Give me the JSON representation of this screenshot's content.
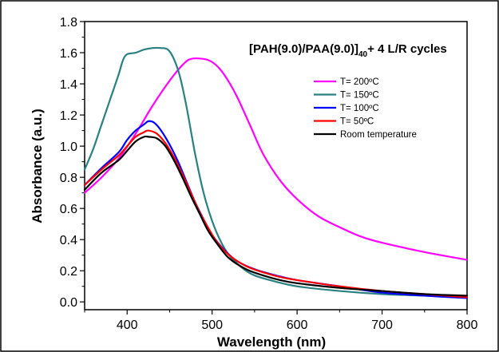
{
  "chart_data": {
    "type": "line",
    "title_main": "[PAH(9.0)/PAA(9.0)]",
    "title_sub": "40",
    "title_rest": "+ 4 L/R cycles",
    "xlabel": "Wavelength (nm)",
    "ylabel": "Absorbance (a.u.)",
    "xlim": [
      350,
      800
    ],
    "ylim": [
      -0.05,
      1.8
    ],
    "xticks": [
      400,
      500,
      600,
      700,
      800
    ],
    "yticks": [
      0.0,
      0.2,
      0.4,
      0.6,
      0.8,
      1.0,
      1.2,
      1.4,
      1.6,
      1.8
    ],
    "xtick_labels": [
      "400",
      "500",
      "600",
      "700",
      "800"
    ],
    "ytick_labels": [
      "0.0",
      "0.2",
      "0.4",
      "0.6",
      "0.8",
      "1.0",
      "1.2",
      "1.4",
      "1.6",
      "1.8"
    ],
    "grid": false,
    "legend_position": "top-right",
    "series": [
      {
        "name": "T= 200ºC",
        "color": "#ff00ff",
        "points": [
          [
            350,
            0.7
          ],
          [
            370,
            0.8
          ],
          [
            390,
            0.92
          ],
          [
            410,
            1.08
          ],
          [
            430,
            1.26
          ],
          [
            450,
            1.42
          ],
          [
            465,
            1.52
          ],
          [
            475,
            1.56
          ],
          [
            490,
            1.56
          ],
          [
            500,
            1.54
          ],
          [
            510,
            1.49
          ],
          [
            520,
            1.41
          ],
          [
            530,
            1.31
          ],
          [
            545,
            1.13
          ],
          [
            560,
            0.95
          ],
          [
            580,
            0.78
          ],
          [
            600,
            0.66
          ],
          [
            625,
            0.55
          ],
          [
            650,
            0.48
          ],
          [
            675,
            0.42
          ],
          [
            700,
            0.38
          ],
          [
            750,
            0.32
          ],
          [
            800,
            0.27
          ]
        ]
      },
      {
        "name": "T= 150ºC",
        "color": "#2a8080",
        "points": [
          [
            350,
            0.85
          ],
          [
            360,
            0.98
          ],
          [
            370,
            1.14
          ],
          [
            380,
            1.3
          ],
          [
            390,
            1.46
          ],
          [
            395,
            1.55
          ],
          [
            400,
            1.59
          ],
          [
            410,
            1.6
          ],
          [
            420,
            1.62
          ],
          [
            430,
            1.63
          ],
          [
            440,
            1.63
          ],
          [
            448,
            1.62
          ],
          [
            455,
            1.56
          ],
          [
            462,
            1.45
          ],
          [
            470,
            1.25
          ],
          [
            480,
            0.95
          ],
          [
            490,
            0.7
          ],
          [
            500,
            0.52
          ],
          [
            510,
            0.39
          ],
          [
            520,
            0.3
          ],
          [
            535,
            0.22
          ],
          [
            550,
            0.17
          ],
          [
            575,
            0.13
          ],
          [
            600,
            0.1
          ],
          [
            650,
            0.07
          ],
          [
            700,
            0.05
          ],
          [
            750,
            0.04
          ],
          [
            800,
            0.03
          ]
        ]
      },
      {
        "name": "T= 100ºC",
        "color": "#0000ff",
        "points": [
          [
            350,
            0.75
          ],
          [
            370,
            0.86
          ],
          [
            390,
            0.96
          ],
          [
            400,
            1.04
          ],
          [
            410,
            1.1
          ],
          [
            420,
            1.14
          ],
          [
            425,
            1.16
          ],
          [
            432,
            1.15
          ],
          [
            440,
            1.1
          ],
          [
            450,
            1.01
          ],
          [
            460,
            0.9
          ],
          [
            470,
            0.77
          ],
          [
            480,
            0.64
          ],
          [
            490,
            0.53
          ],
          [
            500,
            0.43
          ],
          [
            515,
            0.33
          ],
          [
            530,
            0.26
          ],
          [
            550,
            0.21
          ],
          [
            575,
            0.17
          ],
          [
            600,
            0.14
          ],
          [
            650,
            0.1
          ],
          [
            700,
            0.06
          ],
          [
            750,
            0.04
          ],
          [
            800,
            0.025
          ]
        ]
      },
      {
        "name": "T= 50ºC",
        "color": "#ff0000",
        "points": [
          [
            350,
            0.75
          ],
          [
            370,
            0.85
          ],
          [
            390,
            0.94
          ],
          [
            400,
            1.0
          ],
          [
            410,
            1.06
          ],
          [
            420,
            1.09
          ],
          [
            425,
            1.1
          ],
          [
            435,
            1.08
          ],
          [
            445,
            1.02
          ],
          [
            455,
            0.93
          ],
          [
            465,
            0.82
          ],
          [
            475,
            0.7
          ],
          [
            485,
            0.58
          ],
          [
            495,
            0.48
          ],
          [
            505,
            0.39
          ],
          [
            520,
            0.3
          ],
          [
            540,
            0.23
          ],
          [
            560,
            0.19
          ],
          [
            580,
            0.16
          ],
          [
            600,
            0.14
          ],
          [
            650,
            0.1
          ],
          [
            700,
            0.07
          ],
          [
            750,
            0.05
          ],
          [
            800,
            0.03
          ]
        ]
      },
      {
        "name": "Room temperature",
        "color": "#000000",
        "points": [
          [
            350,
            0.72
          ],
          [
            370,
            0.83
          ],
          [
            390,
            0.91
          ],
          [
            400,
            0.97
          ],
          [
            410,
            1.03
          ],
          [
            420,
            1.06
          ],
          [
            425,
            1.06
          ],
          [
            435,
            1.05
          ],
          [
            445,
            1.0
          ],
          [
            455,
            0.91
          ],
          [
            465,
            0.8
          ],
          [
            475,
            0.68
          ],
          [
            485,
            0.57
          ],
          [
            495,
            0.46
          ],
          [
            505,
            0.38
          ],
          [
            520,
            0.28
          ],
          [
            540,
            0.21
          ],
          [
            560,
            0.17
          ],
          [
            580,
            0.14
          ],
          [
            600,
            0.12
          ],
          [
            650,
            0.09
          ],
          [
            700,
            0.07
          ],
          [
            750,
            0.05
          ],
          [
            800,
            0.04
          ]
        ]
      }
    ]
  }
}
